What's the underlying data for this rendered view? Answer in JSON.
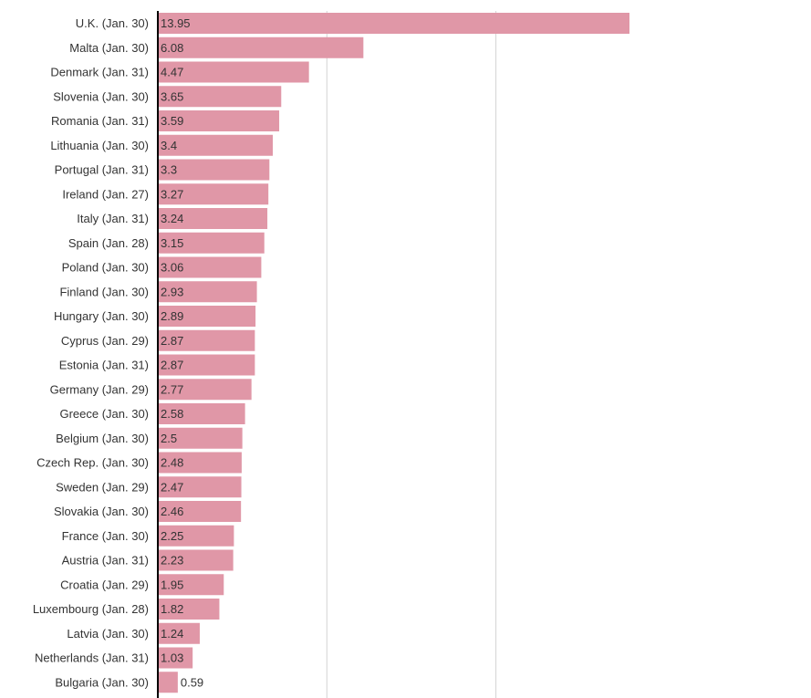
{
  "chart_data": {
    "type": "bar",
    "orientation": "horizontal",
    "title": "",
    "xlabel": "",
    "ylabel": "",
    "grid": true,
    "bar_color": "#e097a7",
    "axis_color": "#000000",
    "grid_color": "#d3d3d3",
    "categories": [
      "U.K. (Jan. 30)",
      "Malta (Jan. 30)",
      "Denmark (Jan. 31)",
      "Slovenia (Jan. 30)",
      "Romania (Jan. 31)",
      "Lithuania (Jan. 30)",
      "Portugal (Jan. 31)",
      "Ireland (Jan. 27)",
      "Italy (Jan. 31)",
      "Spain (Jan. 28)",
      "Poland (Jan. 30)",
      "Finland (Jan. 30)",
      "Hungary (Jan. 30)",
      "Cyprus (Jan. 29)",
      "Estonia (Jan. 31)",
      "Germany (Jan. 29)",
      "Greece (Jan. 30)",
      "Belgium (Jan. 30)",
      "Czech Rep. (Jan. 30)",
      "Sweden (Jan. 29)",
      "Slovakia (Jan. 30)",
      "France (Jan. 30)",
      "Austria (Jan. 31)",
      "Croatia (Jan. 29)",
      "Luxembourg (Jan. 28)",
      "Latvia (Jan. 30)",
      "Netherlands (Jan. 31)",
      "Bulgaria (Jan. 30)"
    ],
    "values": [
      13.95,
      6.08,
      4.47,
      3.65,
      3.59,
      3.4,
      3.3,
      3.27,
      3.24,
      3.15,
      3.06,
      2.93,
      2.89,
      2.87,
      2.87,
      2.77,
      2.58,
      2.5,
      2.48,
      2.47,
      2.46,
      2.25,
      2.23,
      1.95,
      1.82,
      1.24,
      1.03,
      0.59
    ],
    "value_labels": [
      "13.95",
      "6.08",
      "4.47",
      "3.65",
      "3.59",
      "3.4",
      "3.3",
      "3.27",
      "3.24",
      "3.15",
      "3.06",
      "2.93",
      "2.89",
      "2.87",
      "2.87",
      "2.77",
      "2.58",
      "2.5",
      "2.48",
      "2.47",
      "2.46",
      "2.25",
      "2.23",
      "1.95",
      "1.82",
      "1.24",
      "1.03",
      "0.59"
    ],
    "xlim": [
      0,
      19
    ],
    "gridlines": [
      5,
      10
    ]
  }
}
